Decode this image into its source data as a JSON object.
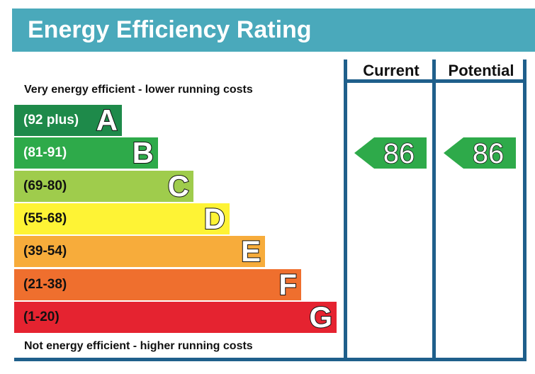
{
  "header": {
    "title": "Energy Efficiency Rating"
  },
  "notes": {
    "top": "Very energy efficient - lower running costs",
    "bottom": "Not energy efficient - higher running costs"
  },
  "columns": {
    "current": "Current",
    "potential": "Potential"
  },
  "chart_data": {
    "type": "bar",
    "title": "Energy Efficiency Rating",
    "bands": [
      {
        "letter": "A",
        "range": "(92 plus)",
        "color": "#1e8a4a",
        "text_color": "#ffffff"
      },
      {
        "letter": "B",
        "range": "(81-91)",
        "color": "#2eaa4a",
        "text_color": "#ffffff"
      },
      {
        "letter": "C",
        "range": "(69-80)",
        "color": "#9fcc4c",
        "text_color": "#111111"
      },
      {
        "letter": "D",
        "range": "(55-68)",
        "color": "#fef335",
        "text_color": "#111111"
      },
      {
        "letter": "E",
        "range": "(39-54)",
        "color": "#f7ac3b",
        "text_color": "#111111"
      },
      {
        "letter": "F",
        "range": "(21-38)",
        "color": "#ef6f2e",
        "text_color": "#111111"
      },
      {
        "letter": "G",
        "range": "(1-20)",
        "color": "#e52330",
        "text_color": "#111111"
      }
    ],
    "current": {
      "value": "86",
      "band": "B"
    },
    "potential": {
      "value": "86",
      "band": "B"
    },
    "accent_color": "#1f5f8b"
  }
}
